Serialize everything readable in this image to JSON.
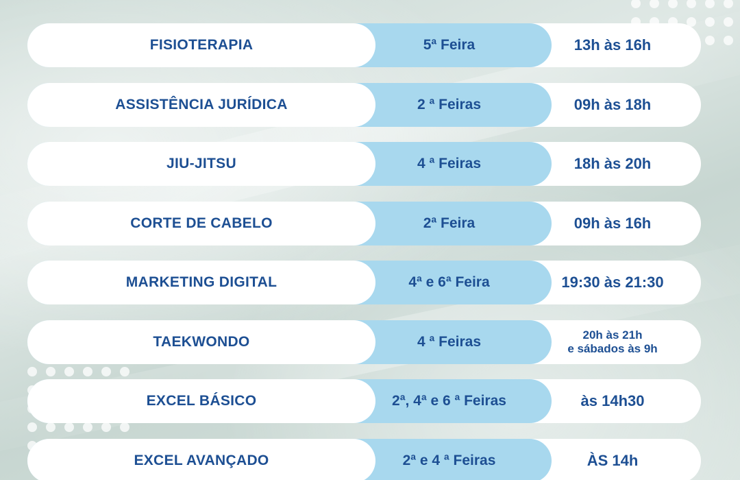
{
  "rows": [
    {
      "activity": "FISIOTERAPIA",
      "day": "5ª Feira",
      "time": "13h às 16h"
    },
    {
      "activity": "ASSISTÊNCIA JURÍDICA",
      "day": "2 ª Feiras",
      "time": "09h às 18h"
    },
    {
      "activity": "JIU-JITSU",
      "day": "4 ª Feiras",
      "time": "18h às 20h"
    },
    {
      "activity": "CORTE DE CABELO",
      "day": "2ª Feira",
      "time": "09h  às 16h"
    },
    {
      "activity": "MARKETING DIGITAL",
      "day": "4ª e 6ª Feira",
      "time": "19:30 às 21:30"
    },
    {
      "activity": "TAEKWONDO",
      "day": "4 ª Feiras",
      "time_line1": "20h às 21h",
      "time_line2": "e sábados às 9h"
    },
    {
      "activity": "EXCEL BÁSICO",
      "day": "2ª, 4ª e 6 ª Feiras",
      "time": "às 14h30"
    },
    {
      "activity": "EXCEL AVANÇADO",
      "day": "2ª e 4 ª Feiras",
      "time": "ÀS 14h"
    }
  ],
  "colors": {
    "text": "#1d4f93",
    "day_column": "#a8d8ee",
    "pill": "#ffffff"
  }
}
